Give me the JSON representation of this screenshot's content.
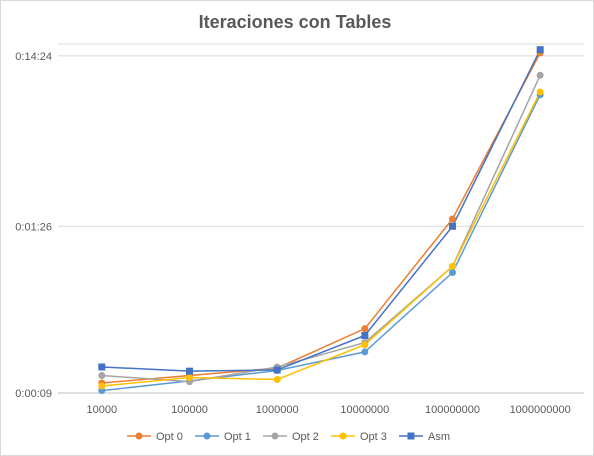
{
  "chart_data": {
    "type": "line",
    "title": "Iteraciones con Tables",
    "categories": [
      "10000",
      "100000",
      "1000000",
      "10000000",
      "100000000",
      "1000000000"
    ],
    "y_scale": "log",
    "y_unit": "seconds",
    "y_ticks": [
      {
        "label": "0:00:09",
        "value": 9
      },
      {
        "label": "0:01:26",
        "value": 86
      },
      {
        "label": "0:14:24",
        "value": 864
      }
    ],
    "ylim": [
      9,
      1015
    ],
    "grid": true,
    "legend_position": "bottom",
    "series": [
      {
        "name": "Opt 0",
        "color": "#ED7D31",
        "values": [
          10.3,
          11.4,
          12.6,
          21.5,
          95,
          900
        ]
      },
      {
        "name": "Opt 1",
        "color": "#5B9BD5",
        "values": [
          9.3,
          10.6,
          12.2,
          15.7,
          46,
          510
        ]
      },
      {
        "name": "Opt 2",
        "color": "#A5A5A5",
        "values": [
          11.4,
          10.5,
          12.8,
          17.8,
          50,
          665
        ]
      },
      {
        "name": "Opt 3",
        "color": "#FFC000",
        "values": [
          9.9,
          11.1,
          10.8,
          17.3,
          50,
          530
        ]
      },
      {
        "name": "Asm",
        "color": "#4472C4",
        "values": [
          12.8,
          12.1,
          12.3,
          19.6,
          86,
          940
        ]
      }
    ]
  }
}
